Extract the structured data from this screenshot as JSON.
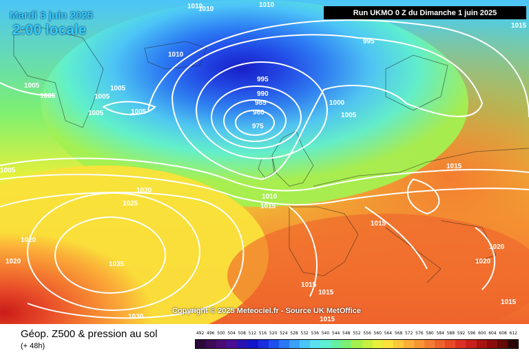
{
  "header": {
    "date": "Mardi 3 juin 2025",
    "time": "2:00 locale",
    "run": "Run UKMO 0 Z du Dimanche 1 juin 2025"
  },
  "copyright": "Copyright © 2025 Meteociel.fr - Source UK MetOffice",
  "footer": {
    "title": "Géop. Z500 & pression au sol",
    "subtitle": "(+ 48h)"
  },
  "legend": {
    "values": [
      "492",
      "496",
      "500",
      "504",
      "508",
      "512",
      "516",
      "520",
      "524",
      "528",
      "532",
      "536",
      "540",
      "544",
      "548",
      "552",
      "556",
      "560",
      "564",
      "568",
      "572",
      "576",
      "580",
      "584",
      "588",
      "592",
      "596",
      "600",
      "604",
      "608",
      "612"
    ],
    "colors": [
      "#2a0a3a",
      "#3d0a55",
      "#4b0c75",
      "#4a0d95",
      "#2812b4",
      "#1414c8",
      "#1a2ee0",
      "#1e50f0",
      "#2a78f6",
      "#3aa0f8",
      "#4cc4f8",
      "#5ae0f0",
      "#5ef0d0",
      "#66f0a4",
      "#7ef070",
      "#a4f050",
      "#c8f040",
      "#e8f03a",
      "#fae23a",
      "#fbc83a",
      "#fbae38",
      "#f89634",
      "#f47c30",
      "#ee622c",
      "#e84a28",
      "#dc3024",
      "#c8201c",
      "#a81414",
      "#8a0c0c",
      "#640808",
      "#2a0404"
    ]
  },
  "isobar_labels": [
    "1010",
    "1010",
    "1010",
    "1015",
    "995",
    "1010",
    "1005",
    "1005",
    "1005",
    "1005",
    "1005",
    "1005",
    "995",
    "990",
    "985",
    "980",
    "975",
    "1000",
    "1005",
    "1015",
    "1020",
    "1025",
    "1010",
    "1015",
    "1015",
    "1020",
    "1035",
    "1020",
    "1020",
    "1020",
    "1015",
    "1015",
    "1015",
    "1030",
    "1015",
    "1005",
    "1015"
  ]
}
